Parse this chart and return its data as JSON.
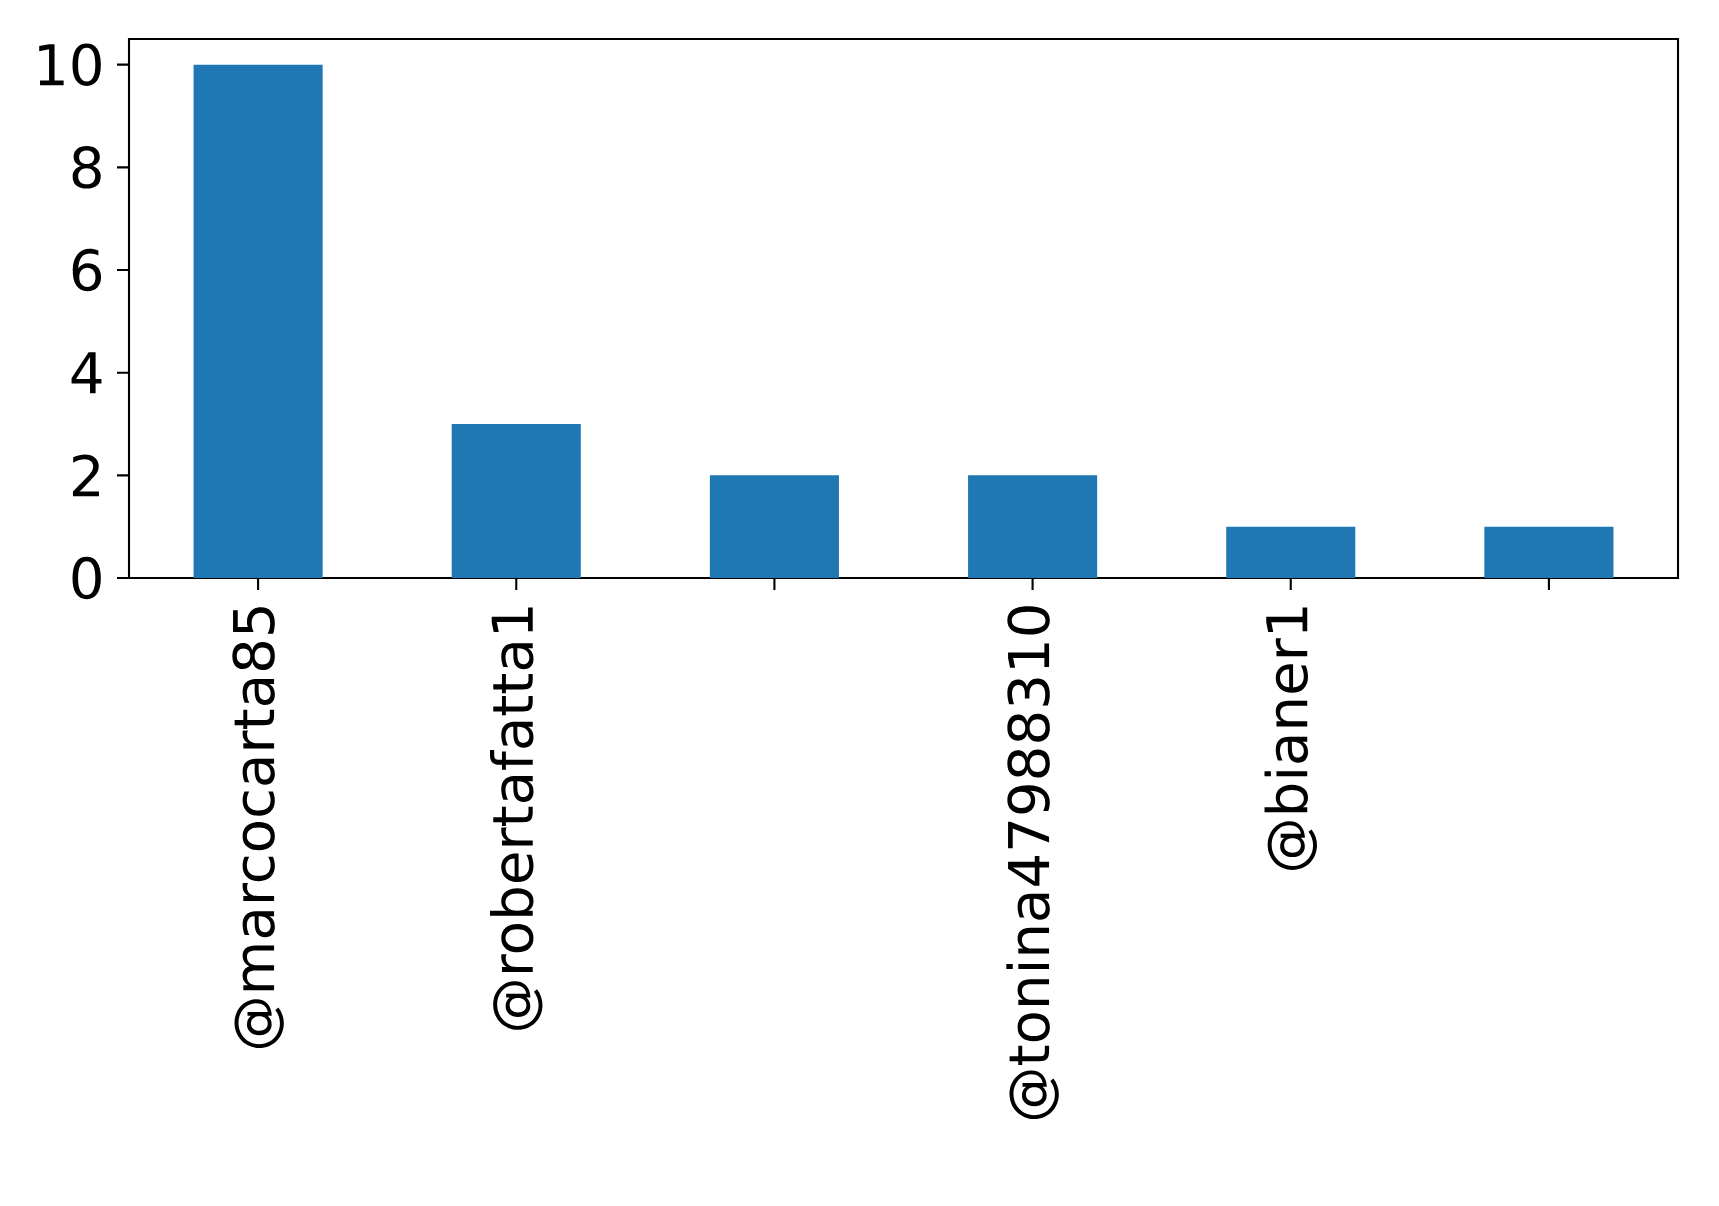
{
  "chart_data": {
    "type": "bar",
    "categories": [
      "@marcocarta85",
      "@robertafatta1",
      null,
      "@tonina47988310",
      "@bianer1",
      null
    ],
    "values": [
      10,
      3,
      2,
      2,
      1,
      1
    ],
    "color": "#1f77b4",
    "ylim": [
      0,
      10.5
    ],
    "yticks": [
      0,
      2,
      4,
      6,
      8,
      10
    ]
  }
}
